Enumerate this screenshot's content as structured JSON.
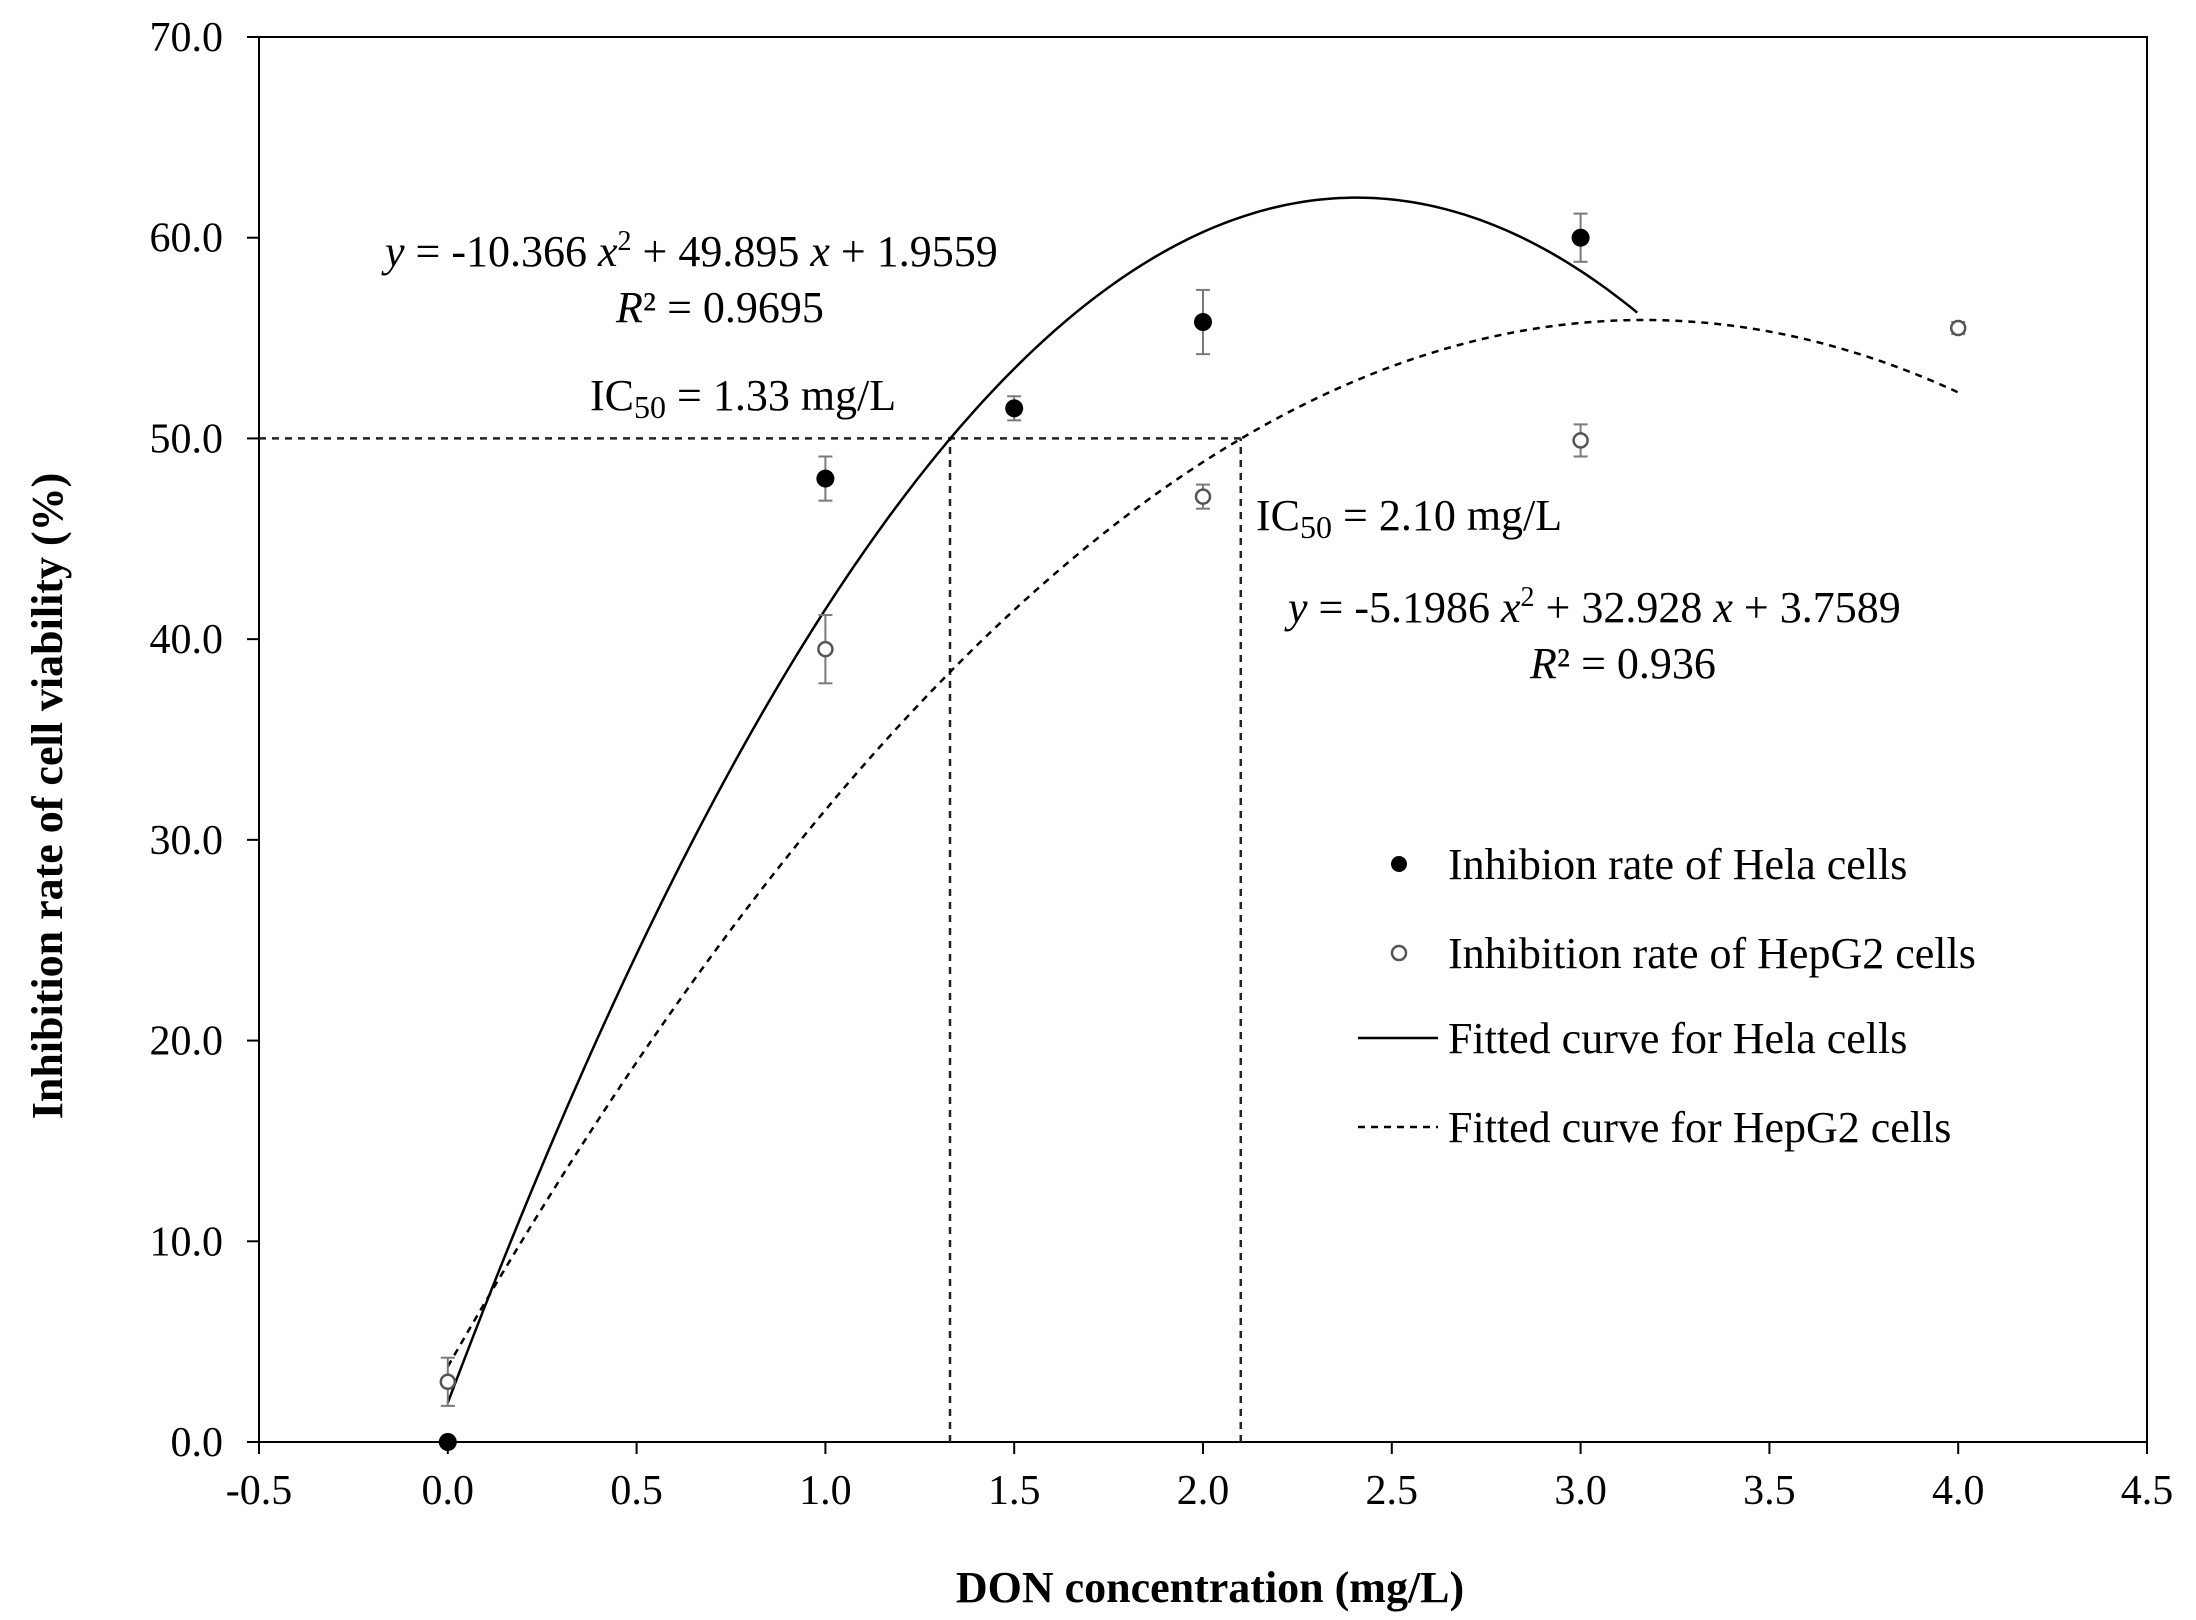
{
  "chart_data": {
    "type": "scatter",
    "xlabel": "DON concentration (mg/L)",
    "ylabel": "Inhibition rate of cell viability (%)",
    "xlim": [
      -0.5,
      4.5
    ],
    "ylim": [
      0,
      70
    ],
    "x_ticks": [
      "-0.5",
      "0.0",
      "0.5",
      "1.0",
      "1.5",
      "2.0",
      "2.5",
      "3.0",
      "3.5",
      "4.0",
      "4.5"
    ],
    "y_ticks": [
      "0.0",
      "10.0",
      "20.0",
      "30.0",
      "40.0",
      "50.0",
      "60.0",
      "70.0"
    ],
    "grid": false,
    "legend_position": "right",
    "series": [
      {
        "name": "Inhibion rate of Hela cells",
        "kind": "points",
        "marker": "filled-circle",
        "x": [
          0,
          1.0,
          1.5,
          2.0,
          3.0
        ],
        "y": [
          0.0,
          48.0,
          51.5,
          55.8,
          60.0
        ],
        "error": [
          0,
          1.1,
          0.6,
          1.6,
          1.2
        ]
      },
      {
        "name": "Inhibition rate of HepG2 cells",
        "kind": "points",
        "marker": "open-circle",
        "x": [
          0,
          1.0,
          2.0,
          3.0,
          4.0
        ],
        "y": [
          3.0,
          39.5,
          47.1,
          49.9,
          55.5
        ],
        "error": [
          1.2,
          1.7,
          0.6,
          0.8,
          0.3
        ]
      },
      {
        "name": "Fitted curve for Hela cells",
        "kind": "fit",
        "line": "solid",
        "coefficients": [
          -10.366,
          49.895,
          1.9559
        ],
        "x_range": [
          0,
          3.15
        ]
      },
      {
        "name": "Fitted curve for HepG2 cells",
        "kind": "fit",
        "line": "dashed",
        "coefficients": [
          -5.1986,
          32.928,
          3.7589
        ],
        "x_range": [
          0,
          4.0
        ]
      }
    ],
    "reference_lines": [
      {
        "y": 50,
        "x_from": -0.5,
        "x_to": 2.1
      },
      {
        "x": 1.33,
        "y_from": 0,
        "y_to": 50
      },
      {
        "x": 2.1,
        "y_from": 0,
        "y_to": 50
      }
    ],
    "annotations": {
      "hela_equation": {
        "y": "y",
        "eq_a": " = -10.366 ",
        "x": "x",
        "eq_b": " + 49.895 ",
        "eq_c": " + 1.9559",
        "sup": "2"
      },
      "hela_r2": {
        "r": "R",
        "rest": "² = 0.9695"
      },
      "hela_ic50": {
        "ic": "IC",
        "sub": "50",
        "rest": " = 1.33 mg/L"
      },
      "hepg2_ic50": {
        "ic": "IC",
        "sub": "50",
        "rest": " = 2.10 mg/L"
      },
      "hepg2_equation": {
        "y": "y",
        "eq_a": " = -5.1986 ",
        "x": "x",
        "eq_b": " + 32.928 ",
        "eq_c": " + 3.7589",
        "sup": "2"
      },
      "hepg2_r2": {
        "r": "R",
        "rest": "² = 0.936"
      }
    }
  },
  "colors": {
    "axis": "#000000",
    "hela": "#000000",
    "hepg2": "#555555",
    "error_bar": "#7a7a7a",
    "reference": "#222222"
  }
}
